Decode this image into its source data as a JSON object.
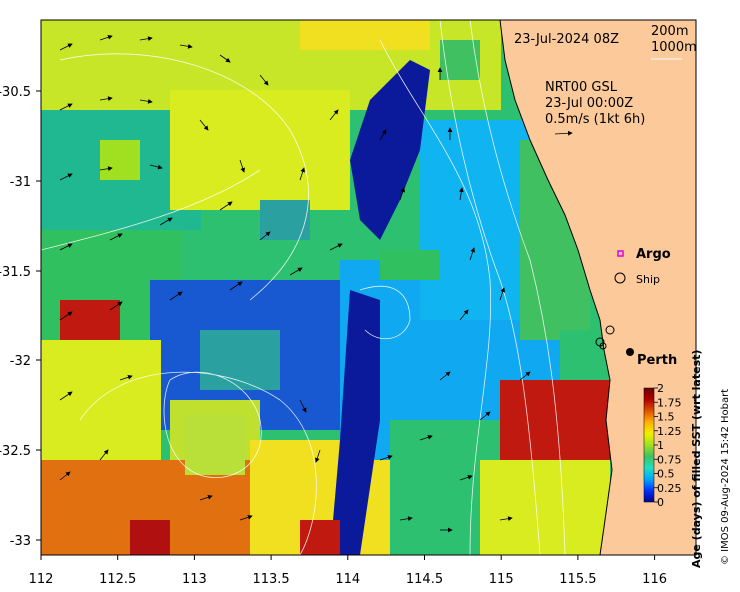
{
  "map": {
    "date_label": "23-Jul-2024 08Z",
    "isobath_legend": [
      "200m",
      "1000m"
    ],
    "current_source": "NRT00 GSL",
    "current_time": "23-Jul 00:00Z",
    "vector_scale": "0.5m/s (1kt 6h)",
    "legend_argo": "Argo",
    "legend_ship": "Ship",
    "place_label": "Perth",
    "x_ticks": [
      "112",
      "112.5",
      "113",
      "113.5",
      "114",
      "114.5",
      "115",
      "115.5",
      "116"
    ],
    "y_ticks": [
      "-30.5",
      "-31",
      "-31.5",
      "-32",
      "-32.5",
      "-33"
    ],
    "lon_range": [
      112,
      116
    ],
    "lat_range": [
      -33.1,
      -30.1
    ]
  },
  "colorbar": {
    "title": "Age (days) of filled SST (wrt latest)",
    "ticks": [
      "2",
      "1.75",
      "1.5",
      "1.25",
      "1",
      "0.75",
      "0.5",
      "0.25",
      "0"
    ],
    "colors": [
      "#00008f",
      "#0033ff",
      "#00a6ff",
      "#20e0c0",
      "#40c060",
      "#a0e020",
      "#f0f000",
      "#ffb000",
      "#e05000",
      "#b00000",
      "#6a0000"
    ]
  },
  "credit": "© IMOS 09-Aug-2024 15:42 Hobart",
  "palette": {
    "land": "#fcc99b",
    "shelf_cyan": "#10b4f0",
    "deep_blue": "#0a1a9a",
    "green": "#2cc070",
    "yellow": "#f0f010",
    "red": "#c01a10"
  }
}
